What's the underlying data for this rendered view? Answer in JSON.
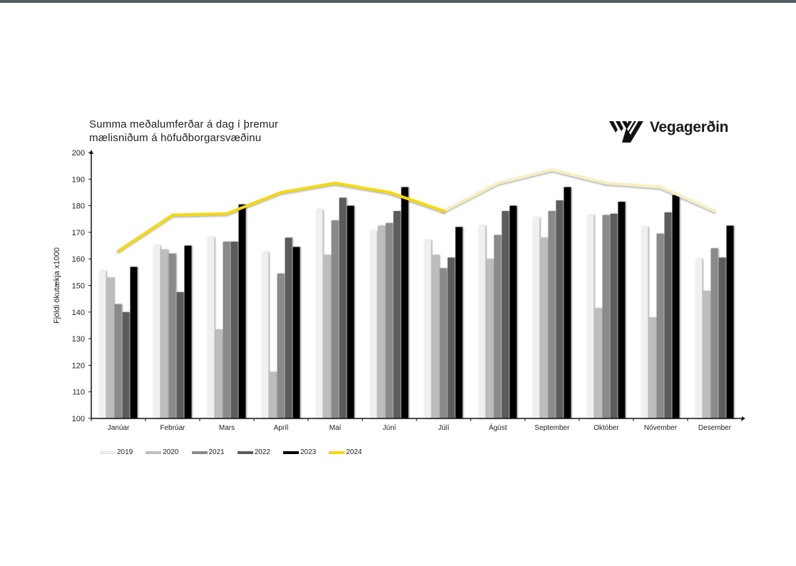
{
  "chart_data": {
    "type": "bar",
    "title_lines": [
      "Summa meðalumferðar á dag í þremur",
      "mælisniðum á höfuðborgarsvæðinu"
    ],
    "brand": "Vegagerðin",
    "ylabel": "Fjöldi ökutækja x1000",
    "xlabel": "",
    "ylim": [
      100,
      200
    ],
    "yticks": [
      100,
      110,
      120,
      130,
      140,
      150,
      160,
      170,
      180,
      190,
      200
    ],
    "categories": [
      "Janúar",
      "Febrúar",
      "Mars",
      "Apríl",
      "Maí",
      "Júní",
      "Júlí",
      "Ágúst",
      "September",
      "Október",
      "Nóvember",
      "Desember"
    ],
    "series": [
      {
        "name": "2019",
        "color": "#f0f0f0",
        "values": [
          155.5,
          165,
          168,
          162.5,
          178.5,
          170.5,
          167,
          172.5,
          175.5,
          176.5,
          172,
          160
        ]
      },
      {
        "name": "2020",
        "color": "#bdbdbd",
        "values": [
          153,
          163.5,
          133.5,
          117.5,
          161.5,
          172.5,
          161.5,
          160,
          168,
          141.5,
          138,
          148
        ]
      },
      {
        "name": "2021",
        "color": "#8a8a8a",
        "values": [
          143,
          162,
          166.5,
          154.5,
          174.5,
          173.5,
          156.5,
          169,
          178,
          176.5,
          169.5,
          164
        ]
      },
      {
        "name": "2022",
        "color": "#5c5c5c",
        "values": [
          140,
          147.5,
          166.5,
          168,
          183,
          178,
          160.5,
          178,
          182,
          177,
          177.5,
          160.5
        ]
      },
      {
        "name": "2023",
        "color": "#000000",
        "values": [
          157,
          165,
          180.5,
          164.5,
          180,
          187,
          172,
          180,
          187,
          181.5,
          184,
          172.5
        ]
      }
    ],
    "line_series": {
      "name": "2024",
      "color": "#f5d90a",
      "projected_color": "#f7efc2",
      "values": [
        163,
        176.5,
        177,
        185,
        188.5,
        185,
        178,
        188.5,
        193.5,
        188.5,
        187,
        178
      ],
      "actual_through_index": 6
    },
    "grid": false,
    "legend_position": "bottom-left"
  }
}
